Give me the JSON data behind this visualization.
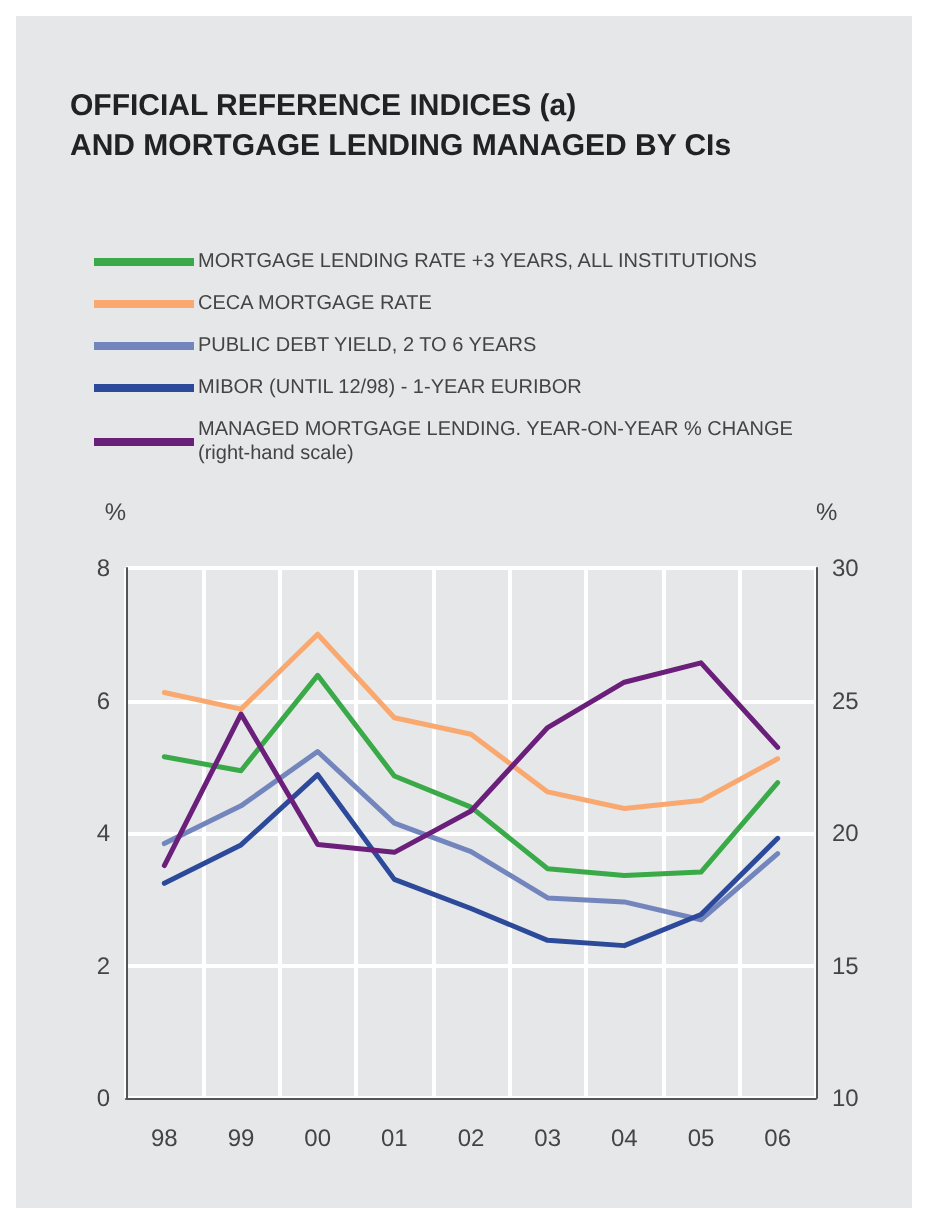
{
  "chart_data": {
    "type": "line",
    "title": "OFFICIAL REFERENCE INDICES (a)\nAND MORTGAGE LENDING MANAGED BY CIs",
    "categories": [
      "98",
      "99",
      "00",
      "01",
      "02",
      "03",
      "04",
      "05",
      "06"
    ],
    "ylabel": "%",
    "y2label": "%",
    "ylim": [
      0,
      8
    ],
    "yticks": [
      0,
      2,
      4,
      6,
      8
    ],
    "y2lim": [
      10,
      30
    ],
    "y2ticks": [
      10,
      15,
      20,
      25,
      30
    ],
    "grid": true,
    "legend": "top left",
    "marker": "none",
    "line_style": "solid",
    "series": [
      {
        "name": "MORTGAGE LENDING RATE +3 YEARS, ALL INSTITUTIONS",
        "color": "#3aaa48",
        "values": [
          5.15,
          4.94,
          6.38,
          4.86,
          4.39,
          3.46,
          3.36,
          3.41,
          4.76
        ]
      },
      {
        "name": "CECA MORTGAGE RATE",
        "color": "#f9a870",
        "values": [
          6.12,
          5.87,
          7.0,
          5.74,
          5.49,
          4.62,
          4.37,
          4.49,
          5.12
        ]
      },
      {
        "name": "PUBLIC DEBT YIELD, 2 TO 6 YEARS",
        "color": "#7385bd",
        "values": [
          3.84,
          4.41,
          5.23,
          4.15,
          3.72,
          3.02,
          2.96,
          2.69,
          3.69
        ]
      },
      {
        "name": "MIBOR (UNTIL 12/98) - 1-YEAR EURIBOR",
        "color": "#2d4a9a",
        "values": [
          3.24,
          3.82,
          4.88,
          3.3,
          2.86,
          2.38,
          2.3,
          2.77,
          3.92
        ]
      },
      {
        "name": "MANAGED MORTGAGE LENDING. YEAR-ON-YEAR % CHANGE\n(right-hand scale)",
        "color": "#6a1f7a",
        "axis": "y2",
        "values": [
          18.77,
          24.49,
          19.57,
          19.27,
          20.83,
          23.98,
          25.69,
          26.42,
          23.23
        ]
      }
    ]
  }
}
